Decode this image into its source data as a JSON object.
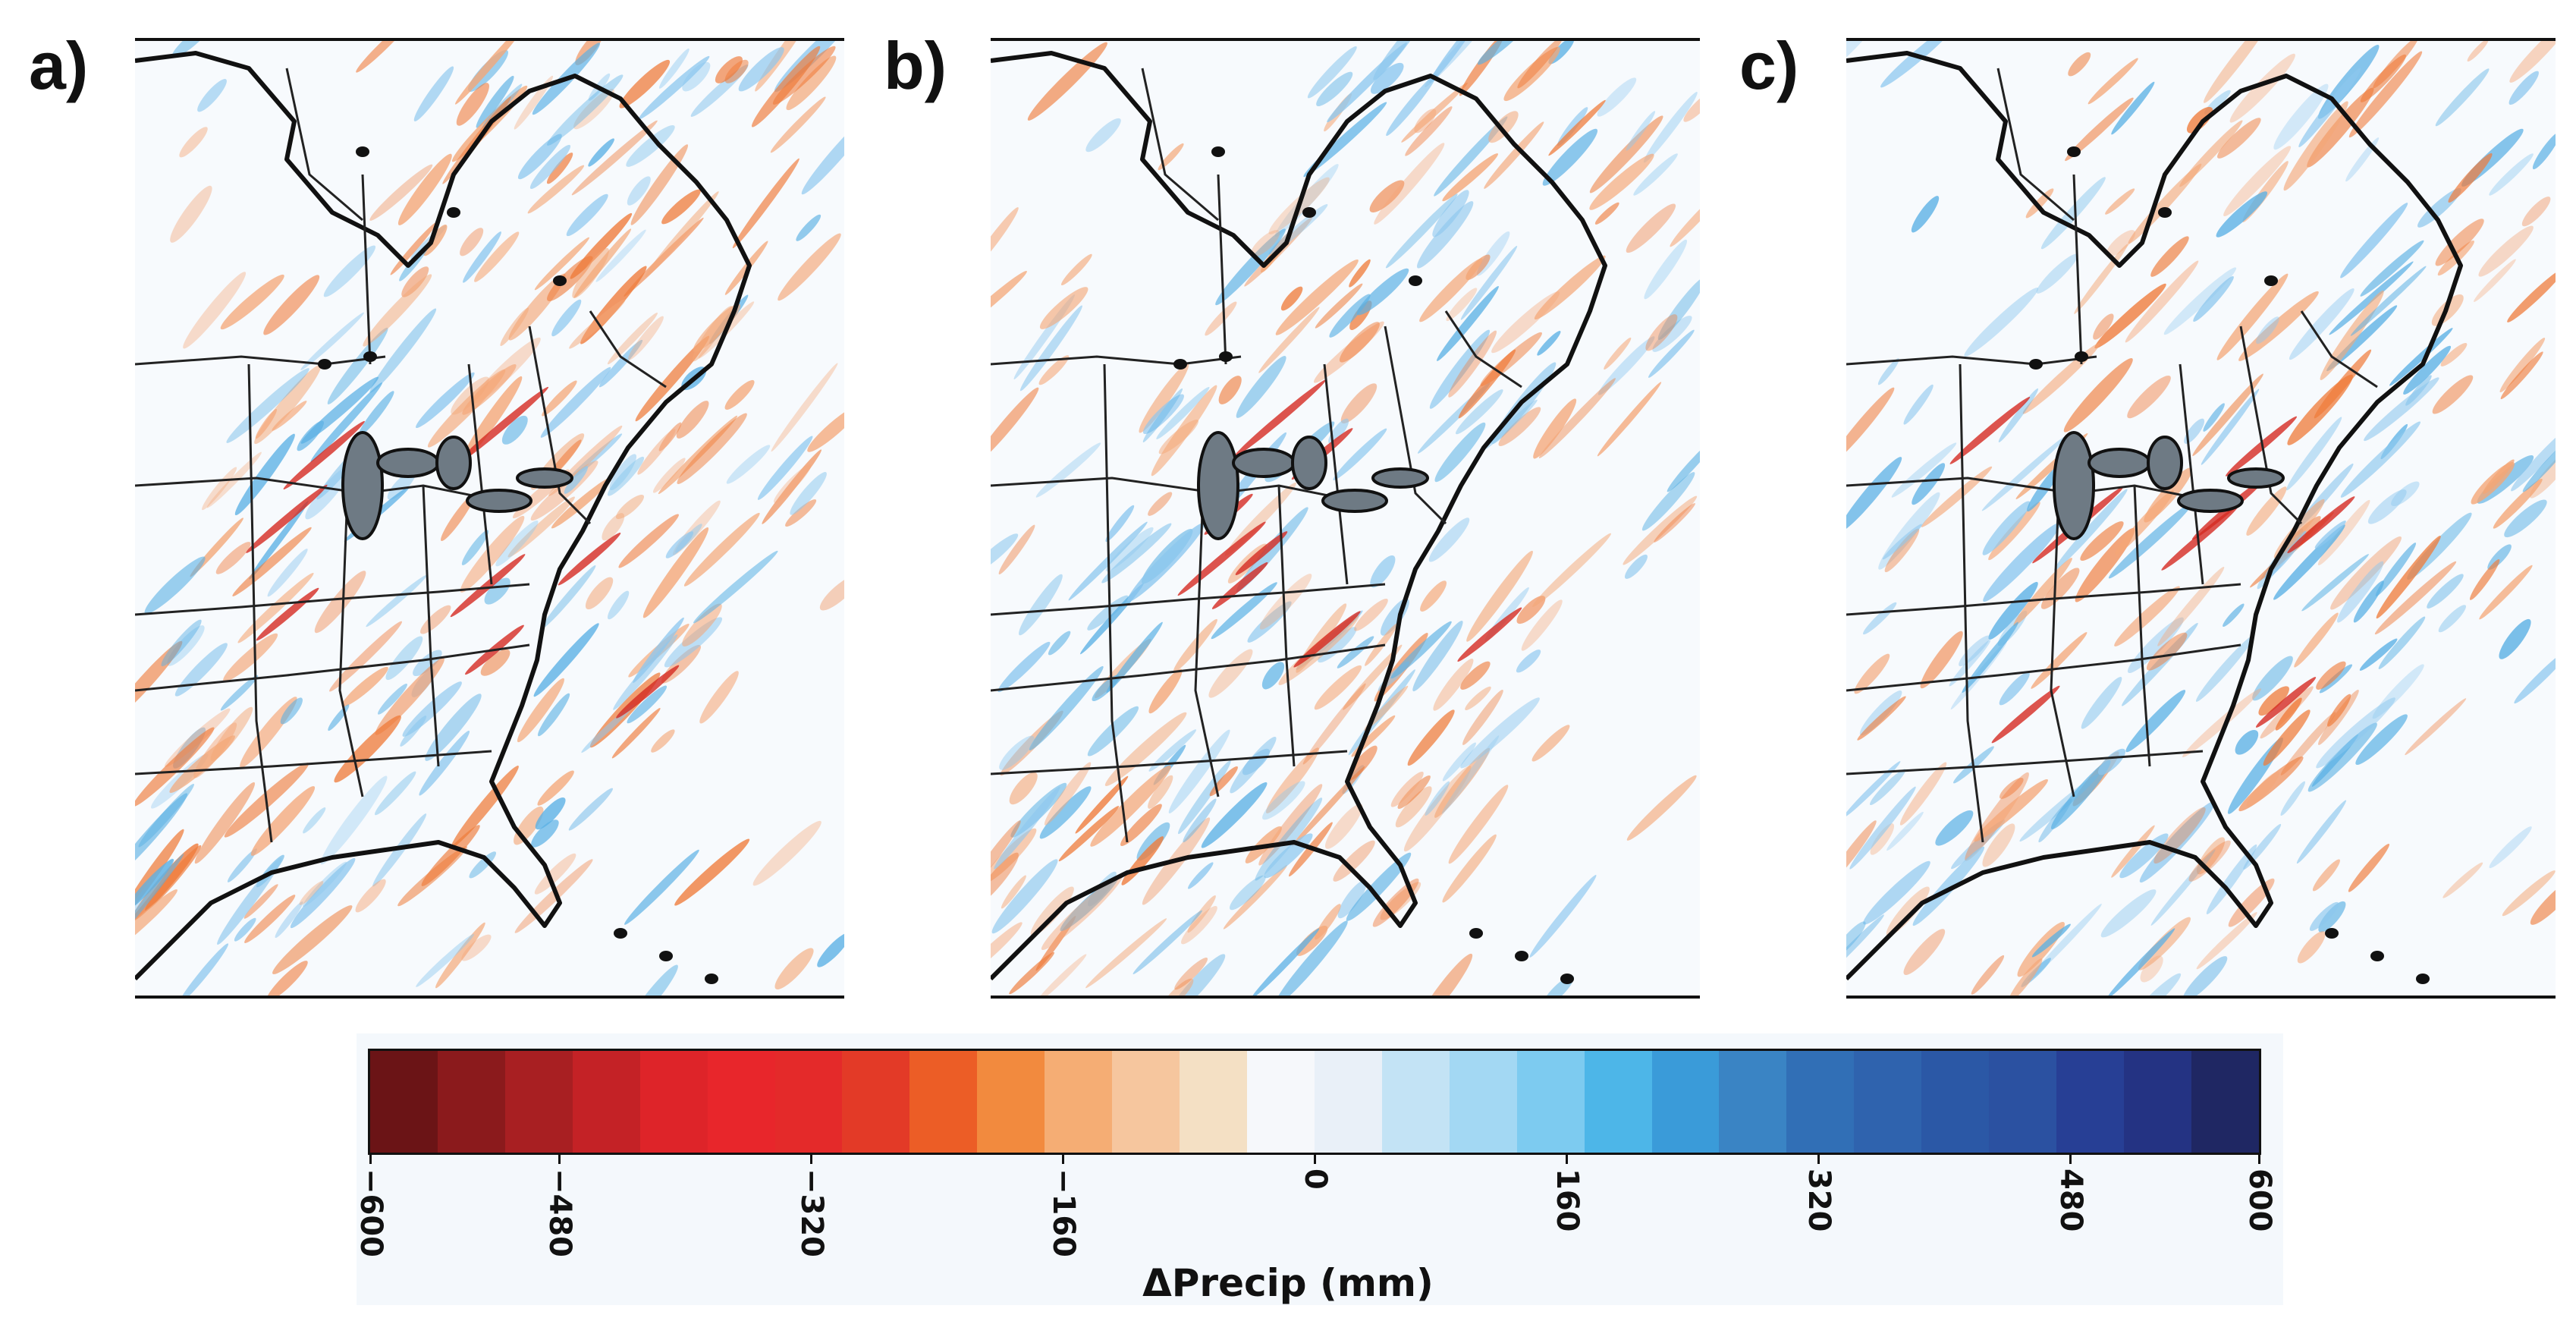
{
  "panels": [
    {
      "label": "a)"
    },
    {
      "label": "b)"
    },
    {
      "label": "c)"
    }
  ],
  "colorbar": {
    "title": "ΔPrecip (mm)",
    "min": -600,
    "max": 600,
    "ticks": [
      "−600",
      "−480",
      "−320",
      "−160",
      "0",
      "160",
      "320",
      "480",
      "600"
    ],
    "tick_values": [
      -600,
      -480,
      -320,
      -160,
      0,
      160,
      320,
      480,
      600
    ],
    "colors": [
      "#6b1416",
      "#8b1a1c",
      "#a81f22",
      "#c42226",
      "#de2429",
      "#e8262b",
      "#e42a2a",
      "#e33a27",
      "#ec5d26",
      "#f28a3e",
      "#f5ad74",
      "#f6c69e",
      "#f4e0c4",
      "#f6f8fb",
      "#e9f0f8",
      "#c3e3f5",
      "#a3d8f3",
      "#7dcbf0",
      "#4db6e8",
      "#3a9bd9",
      "#3a84c4",
      "#316fb6",
      "#2f63ae",
      "#2b58a6",
      "#2b51a1",
      "#273f95",
      "#243383",
      "#1f2763"
    ],
    "palette_diverging": {
      "negative": "#e84a2a",
      "positive": "#4aa0dc"
    }
  }
}
